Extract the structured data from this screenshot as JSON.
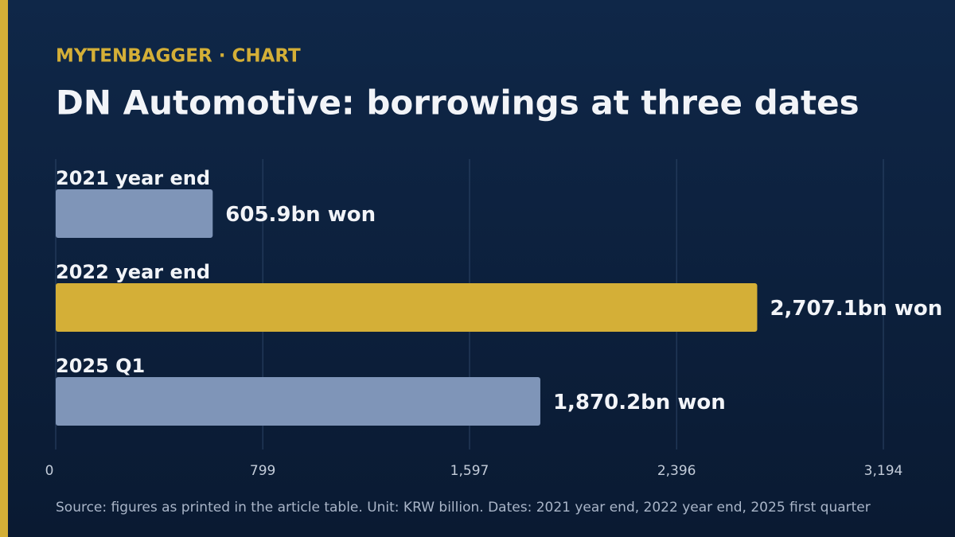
{
  "chart_data": {
    "type": "bar",
    "orientation": "horizontal",
    "kicker": "MYTENBAGGER · CHART",
    "title": "DN Automotive: borrowings at three dates",
    "categories": [
      "2021 year end",
      "2022 year end",
      "2025 Q1"
    ],
    "values": [
      605.9,
      2707.1,
      1870.2
    ],
    "value_labels": [
      "605.9bn won",
      "2,707.1bn won",
      "1,870.2bn won"
    ],
    "colors": [
      "#7f95b8",
      "#d4af37",
      "#7f95b8"
    ],
    "xlim": [
      0,
      3194
    ],
    "xticks": [
      0,
      799,
      {
        "value": 1597,
        "label": "1,597"
      },
      {
        "value": 2396,
        "label": "2,396"
      },
      {
        "value": 3194,
        "label": "3,194"
      }
    ],
    "grid": true,
    "source": "Source: figures as printed in the article table. Unit: KRW billion. Dates: 2021 year end, 2022 year end, 2025 first quarter"
  }
}
